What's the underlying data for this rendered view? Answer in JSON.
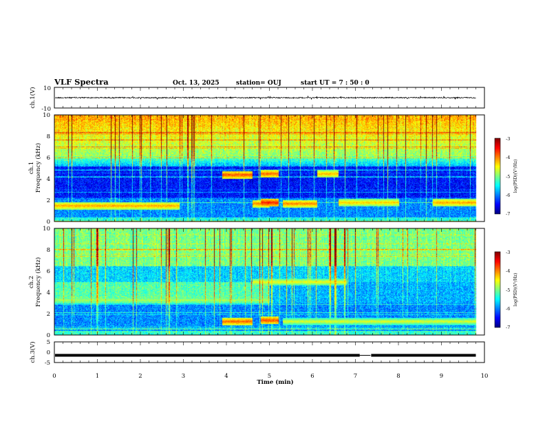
{
  "header": {
    "title": "VLF Spectra",
    "date": "Oct. 13, 2025",
    "station": "station= OUJ",
    "start": "start  UT  =   7 : 50 : 0"
  },
  "chart_data": {
    "type": "heatmap",
    "x": {
      "label": "Time  (min)",
      "range": [
        0,
        10
      ],
      "ticks": [
        "0",
        "1",
        "2",
        "3",
        "4",
        "5",
        "6",
        "7",
        "8",
        "9",
        "10"
      ]
    },
    "panels": [
      {
        "type": "line",
        "ylabel": "ch.1(V)",
        "ylim": [
          -10,
          10
        ],
        "ticks": [
          "10",
          "-10"
        ],
        "baseline": 0,
        "data_end_min": 9.8
      },
      {
        "type": "heatmap",
        "ylabel_channel": "ch.1",
        "ylabel": "Frequency  (kHz)",
        "ylim": [
          0,
          10
        ],
        "ticks": [
          "0",
          "2",
          "4",
          "6",
          "8",
          "10"
        ],
        "data_end_min": 9.8,
        "events": [
          {
            "t0": 0.0,
            "t1": 2.9,
            "f": 1.5,
            "level": 0.72
          },
          {
            "t0": 3.9,
            "t1": 4.6,
            "f": 4.4,
            "level": 0.8
          },
          {
            "t0": 4.6,
            "t1": 5.0,
            "f": 1.7,
            "level": 0.75
          },
          {
            "t0": 4.8,
            "t1": 5.2,
            "f": 4.5,
            "level": 0.78
          },
          {
            "t0": 4.8,
            "t1": 5.2,
            "f": 1.8,
            "level": 0.85
          },
          {
            "t0": 5.3,
            "t1": 6.1,
            "f": 1.7,
            "level": 0.75
          },
          {
            "t0": 6.1,
            "t1": 6.6,
            "f": 4.5,
            "level": 0.7
          },
          {
            "t0": 6.6,
            "t1": 8.0,
            "f": 1.8,
            "level": 0.68
          },
          {
            "t0": 8.8,
            "t1": 9.8,
            "f": 1.8,
            "level": 0.72
          }
        ]
      },
      {
        "type": "heatmap",
        "ylabel_channel": "ch.2",
        "ylabel": "Frequency  (kHz)",
        "ylim": [
          0,
          10
        ],
        "ticks": [
          "0",
          "2",
          "4",
          "6",
          "8",
          "10"
        ],
        "data_end_min": 9.8,
        "events": [
          {
            "t0": 0.0,
            "t1": 5.0,
            "f": 3.3,
            "level": 0.55
          },
          {
            "t0": 3.9,
            "t1": 4.6,
            "f": 1.3,
            "level": 0.78
          },
          {
            "t0": 4.8,
            "t1": 5.2,
            "f": 1.4,
            "level": 0.8
          },
          {
            "t0": 4.6,
            "t1": 6.8,
            "f": 5.0,
            "level": 0.62
          },
          {
            "t0": 5.3,
            "t1": 9.8,
            "f": 1.3,
            "level": 0.6
          }
        ]
      },
      {
        "type": "line",
        "ylabel": "ch.3(V)",
        "ylim": [
          -5,
          5
        ],
        "ticks": [
          "5",
          "0",
          "-5"
        ],
        "baseline": -1.5,
        "gap": [
          7.1,
          7.35
        ],
        "data_end_min": 9.8
      }
    ],
    "colorbar": {
      "label": "log(PSD)(V²/Hz)",
      "range": [
        -7,
        -3
      ],
      "ticks": [
        "-3",
        "-4",
        "-5",
        "-6",
        "-7"
      ],
      "colormap": [
        "#00007f",
        "#0000ff",
        "#007fff",
        "#00ffff",
        "#7fff7f",
        "#ffff00",
        "#ff7f00",
        "#ff0000",
        "#7f0000"
      ]
    }
  }
}
